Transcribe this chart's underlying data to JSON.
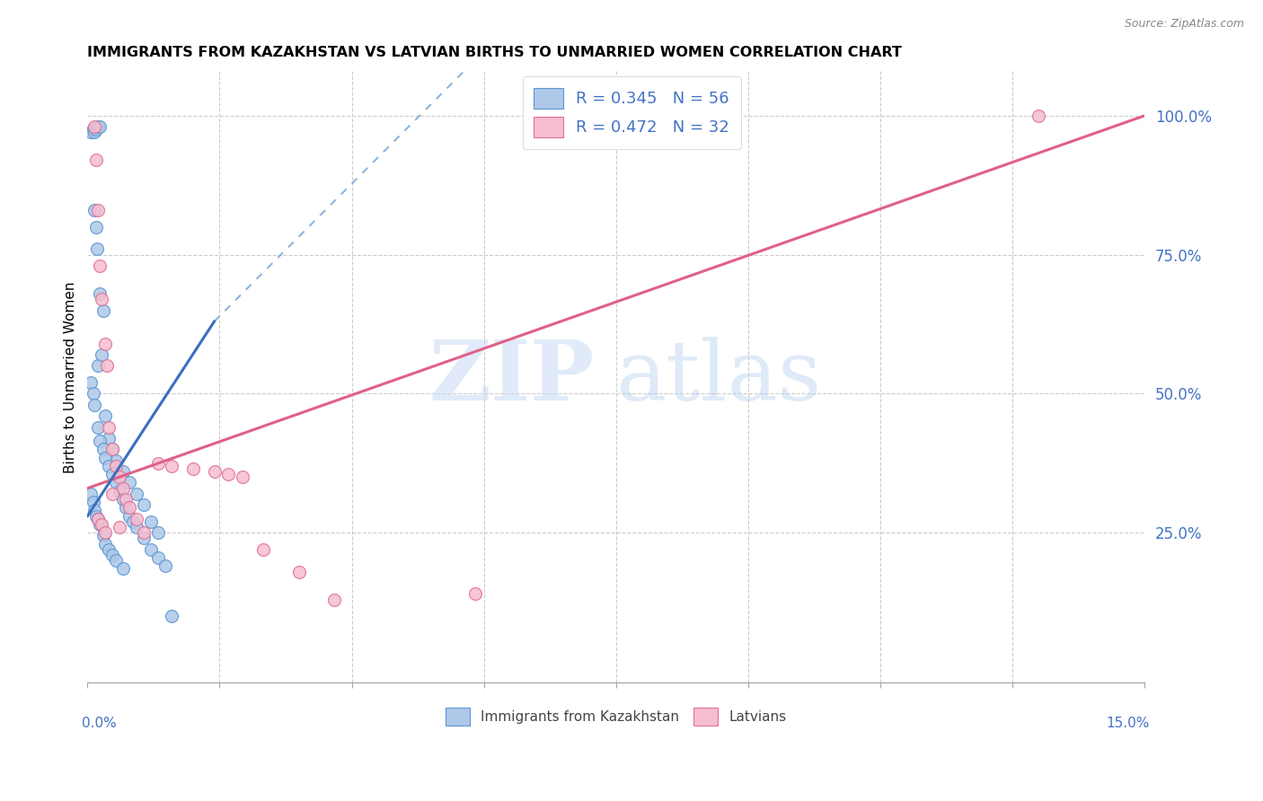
{
  "title": "IMMIGRANTS FROM KAZAKHSTAN VS LATVIAN BIRTHS TO UNMARRIED WOMEN CORRELATION CHART",
  "source": "Source: ZipAtlas.com",
  "ylabel": "Births to Unmarried Women",
  "xlim": [
    0.0,
    15.0
  ],
  "ylim": [
    -2.0,
    108.0
  ],
  "right_yticks": [
    25.0,
    50.0,
    75.0,
    100.0
  ],
  "legend1_R": "0.345",
  "legend1_N": "56",
  "legend2_R": "0.472",
  "legend2_N": "32",
  "blue_color": "#adc8e8",
  "blue_edge_color": "#5b96d2",
  "pink_color": "#f5bdd0",
  "pink_edge_color": "#e07090",
  "blue_line_color": "#3a6fbf",
  "pink_line_color": "#e06088",
  "blue_solid_x0": 0.0,
  "blue_solid_y0": 28.0,
  "blue_solid_x1": 1.8,
  "blue_solid_y1": 63.0,
  "blue_dash_x0": 1.8,
  "blue_dash_y0": 63.0,
  "blue_dash_x1": 5.5,
  "blue_dash_y1": 110.0,
  "pink_x0": 0.0,
  "pink_y0": 33.0,
  "pink_x1": 15.0,
  "pink_y1": 100.0,
  "blue_scatter_x": [
    0.05,
    0.08,
    0.1,
    0.12,
    0.15,
    0.18,
    0.1,
    0.12,
    0.14,
    0.18,
    0.22,
    0.05,
    0.08,
    0.1,
    0.15,
    0.2,
    0.25,
    0.3,
    0.35,
    0.4,
    0.5,
    0.6,
    0.7,
    0.8,
    0.9,
    1.0,
    0.15,
    0.18,
    0.22,
    0.25,
    0.3,
    0.35,
    0.4,
    0.45,
    0.5,
    0.55,
    0.6,
    0.65,
    0.7,
    0.8,
    0.9,
    1.0,
    1.1,
    0.05,
    0.08,
    0.1,
    0.12,
    0.15,
    0.18,
    0.22,
    0.25,
    0.3,
    0.35,
    0.4,
    0.5,
    1.2
  ],
  "blue_scatter_y": [
    97.0,
    97.5,
    97.0,
    97.5,
    98.0,
    98.0,
    83.0,
    80.0,
    76.0,
    68.0,
    65.0,
    52.0,
    50.0,
    48.0,
    55.0,
    57.0,
    46.0,
    42.0,
    40.0,
    38.0,
    36.0,
    34.0,
    32.0,
    30.0,
    27.0,
    25.0,
    44.0,
    41.5,
    40.0,
    38.5,
    37.0,
    35.5,
    34.0,
    32.5,
    31.0,
    29.5,
    28.0,
    27.0,
    26.0,
    24.0,
    22.0,
    20.5,
    19.0,
    32.0,
    30.5,
    29.0,
    28.0,
    27.5,
    26.5,
    24.5,
    23.0,
    22.0,
    21.0,
    20.0,
    18.5,
    10.0
  ],
  "pink_scatter_x": [
    0.1,
    0.12,
    0.15,
    0.18,
    0.2,
    0.25,
    0.28,
    0.3,
    0.35,
    0.4,
    0.45,
    0.5,
    0.55,
    0.6,
    0.7,
    0.8,
    1.0,
    1.2,
    1.5,
    1.8,
    2.0,
    2.2,
    0.15,
    0.2,
    0.25,
    0.35,
    0.45,
    5.5,
    2.5,
    3.0,
    3.5,
    13.5
  ],
  "pink_scatter_y": [
    98.0,
    92.0,
    83.0,
    73.0,
    67.0,
    59.0,
    55.0,
    44.0,
    40.0,
    37.0,
    35.0,
    33.0,
    31.0,
    29.5,
    27.5,
    25.0,
    37.5,
    37.0,
    36.5,
    36.0,
    35.5,
    35.0,
    27.5,
    26.5,
    25.0,
    32.0,
    26.0,
    14.0,
    22.0,
    18.0,
    13.0,
    100.0
  ]
}
